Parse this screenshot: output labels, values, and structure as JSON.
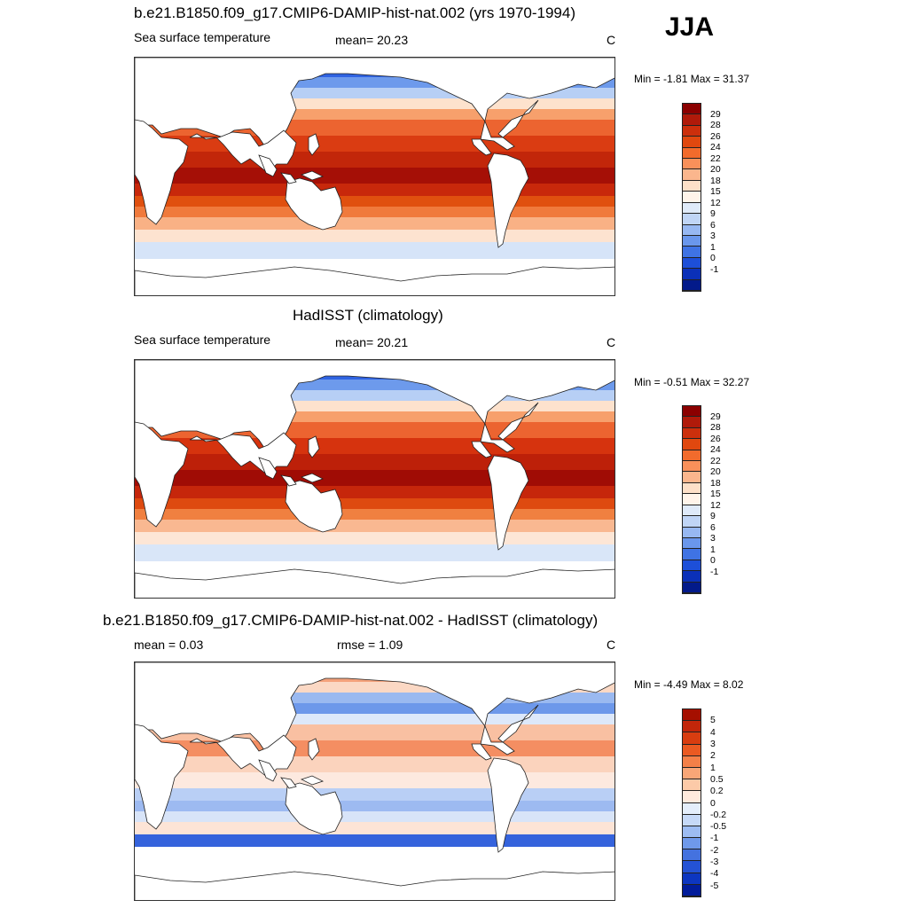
{
  "season": "JJA",
  "panels": [
    {
      "title": "b.e21.B1850.f09_g17.CMIP6-DAMIP-hist-nat.002 (yrs 1970-1994)",
      "left_label": "Sea surface temperature",
      "center_label": "mean=  20.23",
      "units": "C",
      "minmax": "Min =  -1.81 Max =  31.37",
      "cbar_colors": [
        "#8b0000",
        "#b01a0a",
        "#cc2f0c",
        "#e0480f",
        "#f26b2c",
        "#f9905a",
        "#fbb68d",
        "#fde0c8",
        "#fff4ea",
        "#dfeaf9",
        "#c0d5f6",
        "#97b8f2",
        "#6a97ec",
        "#3f73e4",
        "#1d4fd8",
        "#0b30b8",
        "#031a8a"
      ],
      "cbar_labels": [
        "29",
        "28",
        "26",
        "24",
        "22",
        "20",
        "18",
        "15",
        "12",
        "9",
        "6",
        "3",
        "1",
        "0",
        "-1"
      ],
      "zonal_colors": [
        "#1a3fd0",
        "#2f63e2",
        "#6d9aec",
        "#b7cff5",
        "#fde2cd",
        "#f7a06c",
        "#ec6430",
        "#da3c12",
        "#c2260a",
        "#a50f06",
        "#c8280b",
        "#e0500f",
        "#f07a3c",
        "#f9b185",
        "#fde3d0",
        "#d6e4f8"
      ]
    },
    {
      "title": "HadISST (climatology)",
      "left_label": "Sea surface temperature",
      "center_label": "mean=  20.21",
      "units": "C",
      "minmax": "Min =  -0.51 Max =  32.27",
      "cbar_colors": [
        "#8b0000",
        "#b01a0a",
        "#cc2f0c",
        "#e0480f",
        "#f26b2c",
        "#f9905a",
        "#fbb68d",
        "#fde0c8",
        "#fff4ea",
        "#dfeaf9",
        "#c0d5f6",
        "#97b8f2",
        "#6a97ec",
        "#3f73e4",
        "#1d4fd8",
        "#0b30b8",
        "#031a8a"
      ],
      "cbar_labels": [
        "29",
        "28",
        "26",
        "24",
        "22",
        "20",
        "18",
        "15",
        "12",
        "9",
        "6",
        "3",
        "1",
        "0",
        "-1"
      ],
      "zonal_colors": [
        "#1a3fd0",
        "#2f63e2",
        "#6d9aec",
        "#b7cff5",
        "#fde2cd",
        "#f7a06c",
        "#ec6430",
        "#d6330e",
        "#bd2009",
        "#a00c05",
        "#c6260b",
        "#de4a10",
        "#f08040",
        "#f9b891",
        "#fde6d6",
        "#d9e6f8"
      ]
    },
    {
      "title": "b.e21.B1850.f09_g17.CMIP6-DAMIP-hist-nat.002 - HadISST (climatology)",
      "left_label": "mean =   0.03",
      "center_label": "rmse =   1.09",
      "units": "C",
      "minmax": "Min =  -4.49 Max =   8.02",
      "cbar_colors": [
        "#a50f00",
        "#c2260a",
        "#d83d10",
        "#ea5a22",
        "#f48048",
        "#f9a677",
        "#fccaa8",
        "#feeadd",
        "#e4eefb",
        "#c6d9f7",
        "#9dbcf2",
        "#6f99ea",
        "#4472df",
        "#2452d4",
        "#0d36c0",
        "#021c9a"
      ],
      "cbar_labels": [
        "5",
        "4",
        "3",
        "2",
        "1",
        "0.5",
        "0.2",
        "0",
        "-0.2",
        "-0.5",
        "-1",
        "-2",
        "-3",
        "-4",
        "-5"
      ],
      "zonal_colors": [
        "#4b7be3",
        "#f4a27c",
        "#fbd8c4",
        "#9ab9f0",
        "#6d98ea",
        "#dde8fa",
        "#f9c0a2",
        "#f48e62",
        "#fbd3bd",
        "#fde9df",
        "#b9cff5",
        "#9dbaf1",
        "#d8e4f8",
        "#fde4d6",
        "#3563dc",
        "#ffffff"
      ]
    }
  ]
}
